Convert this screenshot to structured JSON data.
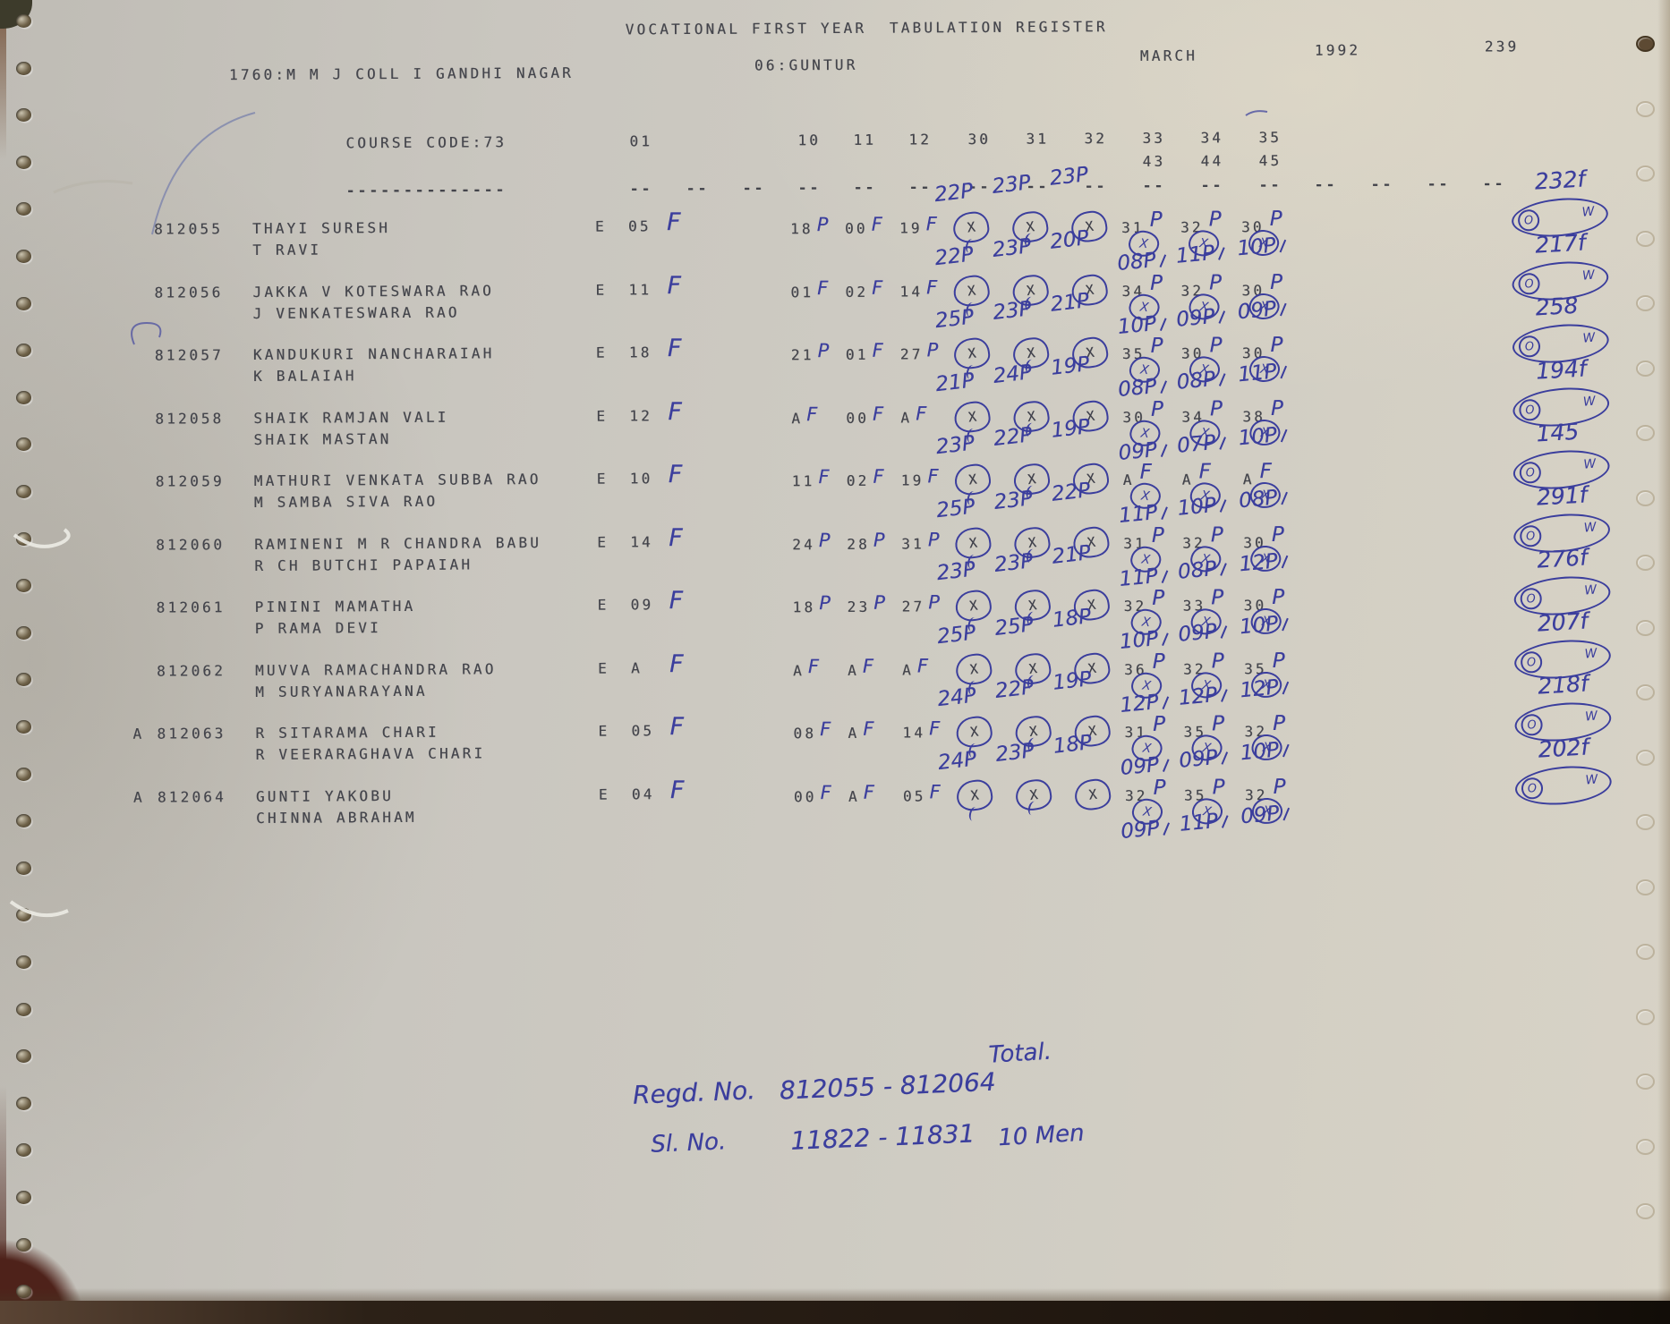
{
  "page": {
    "title": "VOCATIONAL FIRST YEAR  TABULATION REGISTER",
    "college": "1760:M M J COLL I GANDHI NAGAR",
    "district": "06:GUNTUR",
    "month": "MARCH",
    "year": "1992",
    "page_number": "239"
  },
  "table": {
    "course_code_label": "COURSE CODE:73",
    "grade_column": "01",
    "subject_columns": [
      "10",
      "11",
      "12",
      "30",
      "31",
      "32",
      "33",
      "34",
      "35"
    ],
    "subject_columns_line2": [
      "43",
      "44",
      "45"
    ],
    "underline": "--------------",
    "dash": "--",
    "x_symbol": "X",
    "oval_left": "O",
    "oval_right": "W"
  },
  "students": [
    {
      "prefix": "",
      "regno": "812055",
      "name": "THAYI SURESH",
      "father": "T RAVI",
      "medium": "E",
      "grade": {
        "print": "05",
        "hand": "F"
      },
      "marks": [
        {
          "print": "18",
          "hand": "P"
        },
        {
          "print": "00",
          "hand": "F"
        },
        {
          "print": "19",
          "hand": "F"
        }
      ],
      "over_marks": [
        "22P",
        "23P",
        "23P"
      ],
      "row33": [
        {
          "print": "31",
          "hand": "P"
        },
        {
          "print": "32",
          "hand": "P"
        },
        {
          "print": "30",
          "hand": "P"
        }
      ],
      "sub_marks": [
        "08P",
        "11P",
        "10P"
      ],
      "total": "232f"
    },
    {
      "prefix": "",
      "regno": "812056",
      "name": "JAKKA V KOTESWARA RAO",
      "father": "J VENKATESWARA RAO",
      "medium": "E",
      "grade": {
        "print": "11",
        "hand": "F"
      },
      "marks": [
        {
          "print": "01",
          "hand": "F"
        },
        {
          "print": "02",
          "hand": "F"
        },
        {
          "print": "14",
          "hand": "F"
        }
      ],
      "over_marks": [
        "22P",
        "23P",
        "20P"
      ],
      "row33": [
        {
          "print": "34",
          "hand": "P"
        },
        {
          "print": "32",
          "hand": "P"
        },
        {
          "print": "30",
          "hand": "P"
        }
      ],
      "sub_marks": [
        "10P",
        "09P",
        "09P"
      ],
      "total": "217f"
    },
    {
      "prefix": "",
      "regno": "812057",
      "name": "KANDUKURI NANCHARAIAH",
      "father": "K BALAIAH",
      "medium": "E",
      "grade": {
        "print": "18",
        "hand": "F"
      },
      "marks": [
        {
          "print": "21",
          "hand": "P"
        },
        {
          "print": "01",
          "hand": "F"
        },
        {
          "print": "27",
          "hand": "P"
        }
      ],
      "over_marks": [
        "25P",
        "23P",
        "21P"
      ],
      "row33": [
        {
          "print": "35",
          "hand": "P"
        },
        {
          "print": "30",
          "hand": "P"
        },
        {
          "print": "30",
          "hand": "P"
        }
      ],
      "sub_marks": [
        "08P",
        "08P",
        "11P"
      ],
      "total": "258"
    },
    {
      "prefix": "",
      "regno": "812058",
      "name": "SHAIK RAMJAN VALI",
      "father": "SHAIK MASTAN",
      "medium": "E",
      "grade": {
        "print": "12",
        "hand": "F"
      },
      "marks": [
        {
          "print": "A",
          "hand": "F"
        },
        {
          "print": "00",
          "hand": "F"
        },
        {
          "print": "A",
          "hand": "F"
        }
      ],
      "over_marks": [
        "21P",
        "24P",
        "19P"
      ],
      "row33": [
        {
          "print": "30",
          "hand": "P"
        },
        {
          "print": "34",
          "hand": "P"
        },
        {
          "print": "38",
          "hand": "P"
        }
      ],
      "sub_marks": [
        "09P",
        "07P",
        "10P"
      ],
      "total": "194f"
    },
    {
      "prefix": "",
      "regno": "812059",
      "name": "MATHURI VENKATA SUBBA RAO",
      "father": "M SAMBA SIVA RAO",
      "medium": "E",
      "grade": {
        "print": "10",
        "hand": "F"
      },
      "marks": [
        {
          "print": "11",
          "hand": "F"
        },
        {
          "print": "02",
          "hand": "F"
        },
        {
          "print": "19",
          "hand": "F"
        }
      ],
      "over_marks": [
        "23P",
        "22P",
        "19P"
      ],
      "row33": [
        {
          "print": "A",
          "hand": "F"
        },
        {
          "print": "A",
          "hand": "F"
        },
        {
          "print": "A",
          "hand": "F"
        }
      ],
      "sub_marks": [
        "11P",
        "10P",
        "08P"
      ],
      "total": "145"
    },
    {
      "prefix": "",
      "regno": "812060",
      "name": "RAMINENI M R CHANDRA BABU",
      "father": "R CH BUTCHI PAPAIAH",
      "medium": "E",
      "grade": {
        "print": "14",
        "hand": "F"
      },
      "marks": [
        {
          "print": "24",
          "hand": "P"
        },
        {
          "print": "28",
          "hand": "P"
        },
        {
          "print": "31",
          "hand": "P"
        }
      ],
      "over_marks": [
        "25P",
        "23P",
        "22P"
      ],
      "row33": [
        {
          "print": "31",
          "hand": "P"
        },
        {
          "print": "32",
          "hand": "P"
        },
        {
          "print": "30",
          "hand": "P"
        }
      ],
      "sub_marks": [
        "11P",
        "08P",
        "12P"
      ],
      "total": "291f"
    },
    {
      "prefix": "",
      "regno": "812061",
      "name": "PININI MAMATHA",
      "father": "P RAMA DEVI",
      "medium": "E",
      "grade": {
        "print": "09",
        "hand": "F"
      },
      "marks": [
        {
          "print": "18",
          "hand": "P"
        },
        {
          "print": "23",
          "hand": "P"
        },
        {
          "print": "27",
          "hand": "P"
        }
      ],
      "over_marks": [
        "23P",
        "23P",
        "21P"
      ],
      "row33": [
        {
          "print": "32",
          "hand": "P"
        },
        {
          "print": "33",
          "hand": "P"
        },
        {
          "print": "30",
          "hand": "P"
        }
      ],
      "sub_marks": [
        "10P",
        "09P",
        "10P"
      ],
      "total": "276f"
    },
    {
      "prefix": "",
      "regno": "812062",
      "name": "MUVVA RAMACHANDRA RAO",
      "father": "M SURYANARAYANA",
      "medium": "E",
      "grade": {
        "print": "A",
        "hand": "F"
      },
      "marks": [
        {
          "print": "A",
          "hand": "F"
        },
        {
          "print": "A",
          "hand": "F"
        },
        {
          "print": "A",
          "hand": "F"
        }
      ],
      "over_marks": [
        "25P",
        "25P",
        "18P"
      ],
      "row33": [
        {
          "print": "36",
          "hand": "P"
        },
        {
          "print": "32",
          "hand": "P"
        },
        {
          "print": "35",
          "hand": "P"
        }
      ],
      "sub_marks": [
        "12P",
        "12P",
        "12P"
      ],
      "total": "207f"
    },
    {
      "prefix": "A",
      "regno": "812063",
      "name": "R SITARAMA CHARI",
      "father": "R VEERARAGHAVA CHARI",
      "medium": "E",
      "grade": {
        "print": "05",
        "hand": "F"
      },
      "marks": [
        {
          "print": "08",
          "hand": "F"
        },
        {
          "print": "A",
          "hand": "F"
        },
        {
          "print": "14",
          "hand": "F"
        }
      ],
      "over_marks": [
        "24P",
        "22P",
        "19P"
      ],
      "row33": [
        {
          "print": "31",
          "hand": "P"
        },
        {
          "print": "35",
          "hand": "P"
        },
        {
          "print": "32",
          "hand": "P"
        }
      ],
      "sub_marks": [
        "09P",
        "09P",
        "10P"
      ],
      "total": "218f"
    },
    {
      "prefix": "A",
      "regno": "812064",
      "name": "GUNTI YAKOBU",
      "father": "CHINNA ABRAHAM",
      "medium": "E",
      "grade": {
        "print": "04",
        "hand": "F"
      },
      "marks": [
        {
          "print": "00",
          "hand": "F"
        },
        {
          "print": "A",
          "hand": "F"
        },
        {
          "print": "05",
          "hand": "F"
        }
      ],
      "over_marks": [
        "24P",
        "23P",
        "18P"
      ],
      "row33": [
        {
          "print": "32",
          "hand": "P"
        },
        {
          "print": "35",
          "hand": "P"
        },
        {
          "print": "32",
          "hand": "P"
        }
      ],
      "sub_marks": [
        "09P",
        "11P",
        "09P"
      ],
      "total": "202f"
    }
  ],
  "footer": {
    "total_label": "Total.",
    "regd_label": "Regd. No.",
    "regd_range": "812055 - 812064",
    "sl_label": "Sl. No.",
    "sl_range": "11822 - 11831",
    "count_label": "10 Men"
  },
  "colors": {
    "paper": "#cbc8c0",
    "print_ink": "#43444b",
    "pen_ink": "#3b3e9d"
  }
}
